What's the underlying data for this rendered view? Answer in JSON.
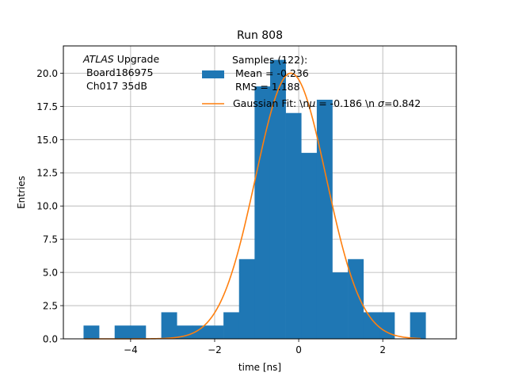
{
  "chart_data": {
    "type": "bar",
    "title": "Run 808",
    "xlabel": "time [ns]",
    "ylabel": "Entries",
    "xlim": [
      -5.6,
      3.75
    ],
    "ylim": [
      0,
      22.05
    ],
    "grid": true,
    "xticks": [
      -4,
      -2,
      0,
      2
    ],
    "xtick_labels": [
      "−4",
      "−2",
      "0",
      "2"
    ],
    "yticks": [
      0,
      2.5,
      5,
      7.5,
      10,
      12.5,
      15,
      17.5,
      20
    ],
    "ytick_labels": [
      "0.0",
      "2.5",
      "5.0",
      "7.5",
      "10.0",
      "12.5",
      "15.0",
      "17.5",
      "20.0"
    ],
    "annotation": {
      "atlas": "ATLAS",
      "upgrade": " Upgrade",
      "board": "Board186975",
      "channel": "Ch017 35dB"
    },
    "legend": {
      "placement": "top-center",
      "samples_line1": "Samples (122):",
      "samples_line2": " Mean = -0.236",
      "samples_line3": " RMS = 1.188",
      "fit_prefix": "Gaussian Fit: \\n",
      "fit_mu_sym": "μ",
      "fit_mu": " = -0.186 \\n ",
      "fit_sigma_sym": "σ",
      "fit_sigma": "=0.842"
    },
    "histogram": {
      "name": "Samples (122)",
      "color": "#1f77b4",
      "bin_edges": [
        -5.12,
        -4.75,
        -4.38,
        -4.01,
        -3.64,
        -3.27,
        -2.9,
        -2.53,
        -2.16,
        -1.79,
        -1.42,
        -1.05,
        -0.68,
        -0.31,
        0.06,
        0.43,
        0.8,
        1.17,
        1.54,
        1.91,
        2.28,
        2.65,
        3.02
      ],
      "counts": [
        1,
        0,
        1,
        1,
        0,
        2,
        1,
        1,
        1,
        2,
        6,
        19,
        21,
        17,
        14,
        18,
        5,
        6,
        2,
        2,
        0,
        2
      ]
    },
    "fit": {
      "name": "Gaussian Fit",
      "color": "#ff7f0e",
      "mu": -0.186,
      "sigma": 0.842,
      "amplitude": 20.0,
      "x_range": [
        -5.1,
        2.9
      ]
    }
  }
}
